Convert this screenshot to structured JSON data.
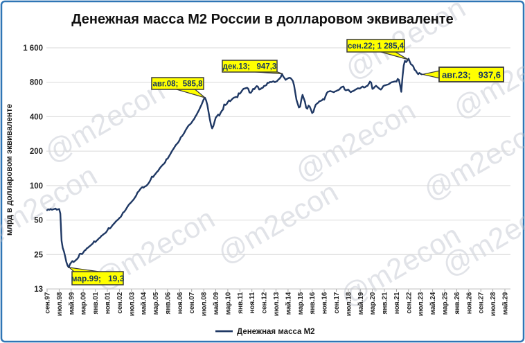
{
  "title": "Денежная масса М2 России в долларовом эквиваленте",
  "watermark": "@m2econ",
  "y_axis": {
    "title": "млрд в долларовом эквиваленте",
    "tick_labels": [
      "1 600",
      "800",
      "400",
      "200",
      "100",
      "50",
      "25",
      "13"
    ],
    "tick_values": [
      1600,
      800,
      400,
      200,
      100,
      50,
      25,
      13
    ],
    "scale": "log2"
  },
  "x_axis": {
    "labels": [
      "сен.97",
      "июл.98",
      "май.99",
      "мар.00",
      "янв.01",
      "ноя.01",
      "сен.02",
      "июл.03",
      "май.04",
      "мар.05",
      "янв.06",
      "ноя.06",
      "сен.07",
      "июл.08",
      "май.09",
      "мар.10",
      "янв.11",
      "ноя.11",
      "сен.12",
      "июл.13",
      "май.14",
      "мар.15",
      "янв.16",
      "ноя.16",
      "сен.17",
      "июл.18",
      "май.19",
      "мар.20",
      "янв.21",
      "ноя.21",
      "сен.22",
      "июл.23",
      "май.24",
      "мар.25",
      "янв.26",
      "ноя.26",
      "сен.27",
      "июл.28",
      "май.29"
    ],
    "months_between_labels": 10
  },
  "legend": {
    "label": "Денежная масса М2"
  },
  "callouts": [
    {
      "date": "мар.99",
      "value": "19,3",
      "label": "мар.99;   19,3"
    },
    {
      "date": "авг.08",
      "value": "585,8",
      "label": "авг.08;  585,8"
    },
    {
      "date": "дек.13",
      "value": "947,3",
      "label": "дек.13;   947,3"
    },
    {
      "date": "сен.22",
      "value": "1 285,4",
      "label": "сен.22; 1 285,4"
    },
    {
      "date": "авг.23",
      "value": "937,6",
      "label": "авг.23;   937,6"
    }
  ],
  "colors": {
    "line": "#1f3864",
    "callout_bg": "#ffff00",
    "frame": "#2f75b5",
    "gridline": "#d9d9d9"
  },
  "chart_data": {
    "type": "line",
    "title": "Денежная масса М2 России в долларовом эквиваленте",
    "ylabel": "млрд в долларовом эквиваленте",
    "y_scale": "log2",
    "ylim": [
      13,
      1600
    ],
    "x_start": "сен.97",
    "x_data_end": "авг.23",
    "x_axis_end": "май.29",
    "x_unit": "months from сен.97",
    "grid": "horizontal",
    "legend_position": "bottom-center",
    "annotations": [
      {
        "x": "мар.99",
        "y": 19.3
      },
      {
        "x": "авг.08",
        "y": 585.8
      },
      {
        "x": "дек.13",
        "y": 947.3
      },
      {
        "x": "сен.22",
        "y": 1285.4
      },
      {
        "x": "авг.23",
        "y": 937.6
      }
    ],
    "series": [
      {
        "name": "Денежная масса М2",
        "values": [
          61,
          62,
          61.5,
          62.5,
          61.5,
          62,
          62.5,
          63,
          61.5,
          62,
          62.5,
          57,
          33,
          28.5,
          26.5,
          24,
          21.5,
          20,
          19.3,
          20.6,
          21.3,
          21.9,
          21.5,
          21.9,
          22.4,
          22.9,
          23.6,
          25.3,
          25.4,
          25.2,
          26,
          27,
          27.4,
          28.3,
          28.7,
          29.4,
          29.9,
          30.6,
          31.3,
          32.6,
          32.1,
          32.9,
          33.7,
          34.6,
          35.1,
          36.3,
          36.9,
          37.7,
          38.3,
          39.1,
          40.6,
          42.6,
          42.1,
          43.1,
          44.6,
          46,
          47.1,
          48.6,
          49.6,
          50.6,
          52.1,
          53.1,
          55.1,
          58,
          59,
          61,
          63.5,
          66,
          68.5,
          70,
          72,
          74,
          76,
          79,
          82,
          87,
          89,
          92,
          95,
          97,
          96,
          98,
          99,
          101,
          104,
          108,
          113,
          120,
          119,
          123,
          127,
          131,
          134,
          139,
          144,
          148,
          152,
          155,
          160,
          170,
          172,
          179,
          186,
          195,
          203,
          210,
          219,
          227,
          233,
          240,
          250,
          265,
          270,
          280,
          291,
          305,
          318,
          330,
          340,
          345,
          356,
          370,
          381,
          400,
          415,
          435,
          455,
          480,
          505,
          535,
          568,
          585.8,
          555,
          505,
          440,
          385,
          340,
          316,
          332,
          362,
          393,
          405,
          418,
          410,
          432,
          450,
          462,
          512,
          506,
          516,
          536,
          556,
          546,
          561,
          576,
          586,
          591,
          596,
          591,
          641,
          636,
          656,
          681,
          701,
          706,
          711,
          716,
          701,
          651,
          646,
          666,
          701,
          696,
          721,
          741,
          731,
          691,
          696,
          711,
          716,
          741,
          746,
          756,
          791,
          790,
          806,
          800,
          810,
          816,
          800,
          810,
          820,
          846,
          861,
          891,
          947.3,
          900,
          870,
          840,
          855,
          866,
          876,
          870,
          850,
          820,
          750,
          650,
          560,
          520,
          481,
          490,
          560,
          621,
          580,
          540,
          480,
          470,
          500,
          490,
          460,
          431,
          440,
          480,
          510,
          520,
          530,
          545,
          550,
          555,
          570,
          565,
          600,
          640,
          660,
          665,
          670,
          665,
          660,
          655,
          665,
          670,
          680,
          685,
          700,
          720,
          730,
          735,
          690,
          680,
          685,
          690,
          670,
          655,
          665,
          670,
          680,
          690,
          700,
          710,
          705,
          710,
          725,
          735,
          720,
          725,
          740,
          745,
          775,
          810,
          795,
          700,
          710,
          730,
          745,
          730,
          715,
          700,
          690,
          710,
          740,
          750,
          755,
          760,
          765,
          775,
          790,
          800,
          805,
          810,
          815,
          810,
          855,
          840,
          750,
          660,
          900,
          1120,
          1230,
          1200,
          1240,
          1285.4,
          1210,
          1150,
          1130,
          1100,
          1030,
          1010,
          970,
          940,
          965,
          950,
          937.6
        ]
      }
    ]
  }
}
